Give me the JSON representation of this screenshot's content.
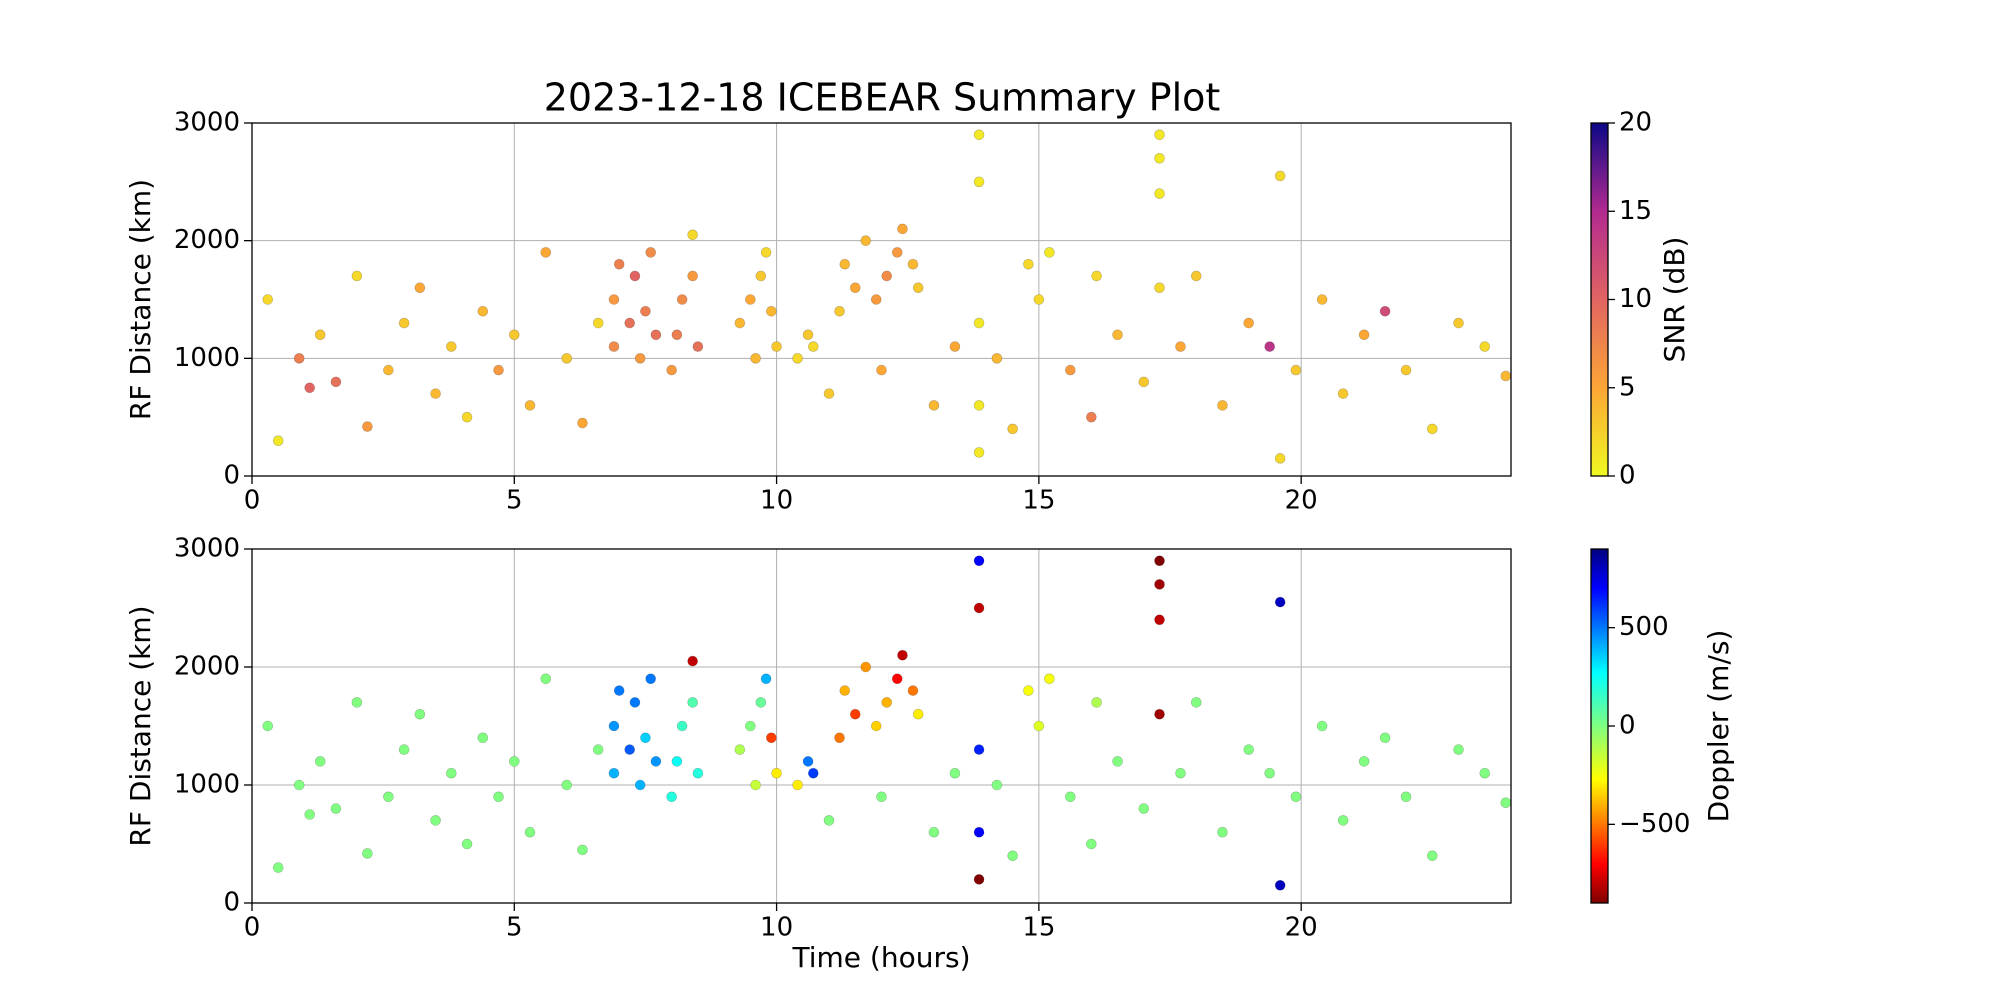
{
  "chart_data": [
    {
      "type": "scatter",
      "title": "2023-12-18 ICEBEAR Summary Plot",
      "ylabel": "RF Distance (km)",
      "xlim": [
        0,
        24
      ],
      "xticks": [
        0,
        5,
        10,
        15,
        20
      ],
      "ylim": [
        0,
        3000
      ],
      "yticks": [
        0,
        1000,
        2000,
        3000
      ],
      "grid": true,
      "colormap": "plasma_r",
      "clabel": "SNR (dB)",
      "clim": [
        0,
        20
      ],
      "cticks": [
        0,
        5,
        10,
        15,
        20
      ],
      "x": [
        0.3,
        0.5,
        0.9,
        1.1,
        1.3,
        1.6,
        2.0,
        2.2,
        2.6,
        2.9,
        3.2,
        3.5,
        3.8,
        4.1,
        4.4,
        4.7,
        5.0,
        5.3,
        5.6,
        6.0,
        6.3,
        6.6,
        6.9,
        6.9,
        7.0,
        7.2,
        7.3,
        7.4,
        7.5,
        7.6,
        7.7,
        8.0,
        8.1,
        8.2,
        8.4,
        8.5,
        8.4,
        9.3,
        9.5,
        9.6,
        9.7,
        9.8,
        9.9,
        10.0,
        10.4,
        10.6,
        10.7,
        11.2,
        11.3,
        11.5,
        11.7,
        11.9,
        12.1,
        12.3,
        12.4,
        12.6,
        12.7,
        11.0,
        12.0,
        13.0,
        13.4,
        13.86,
        13.86,
        13.86,
        13.86,
        13.86,
        14.2,
        14.5,
        14.8,
        15.0,
        15.2,
        15.6,
        16.0,
        16.1,
        16.5,
        17.0,
        17.3,
        17.3,
        17.3,
        17.3,
        17.7,
        18.0,
        18.5,
        19.0,
        19.4,
        19.6,
        19.6,
        19.9,
        20.4,
        20.8,
        21.2,
        21.6,
        22.0,
        22.5,
        23.0,
        23.5,
        23.9
      ],
      "values": [
        1500,
        300,
        1000,
        750,
        1200,
        800,
        1700,
        420,
        900,
        1300,
        1600,
        700,
        1100,
        500,
        1400,
        900,
        1200,
        600,
        1900,
        1000,
        450,
        1300,
        1100,
        1500,
        1800,
        1300,
        1700,
        1000,
        1400,
        1900,
        1200,
        900,
        1200,
        1500,
        1700,
        1100,
        2050,
        1300,
        1500,
        1000,
        1700,
        1900,
        1400,
        1100,
        1000,
        1200,
        1100,
        1400,
        1800,
        1600,
        2000,
        1500,
        1700,
        1900,
        2100,
        1800,
        1600,
        700,
        900,
        600,
        1100,
        2900,
        2500,
        1300,
        600,
        200,
        1000,
        400,
        1800,
        1500,
        1900,
        900,
        500,
        1700,
        1200,
        800,
        2900,
        2700,
        2400,
        1600,
        1100,
        1700,
        600,
        1300,
        1100,
        2550,
        150,
        900,
        1500,
        700,
        1200,
        1400,
        900,
        400,
        1300,
        1100,
        850
      ],
      "color_values": [
        2,
        1,
        8,
        10,
        3,
        9,
        2,
        6,
        4,
        3,
        5,
        4,
        3,
        2,
        4,
        6,
        3,
        4,
        5,
        3,
        5,
        2,
        7,
        6,
        8,
        9,
        10,
        6,
        8,
        7,
        9,
        6,
        8,
        7,
        6,
        9,
        2,
        4,
        5,
        4,
        3,
        2,
        4,
        3,
        2,
        3,
        2,
        3,
        4,
        5,
        4,
        6,
        7,
        6,
        5,
        4,
        3,
        3,
        5,
        4,
        5,
        1,
        1,
        1,
        1,
        1,
        4,
        3,
        2,
        2,
        1,
        6,
        8,
        2,
        4,
        3,
        1,
        1,
        1,
        2,
        5,
        3,
        4,
        5,
        14,
        2,
        2,
        3,
        4,
        3,
        5,
        12,
        3,
        2,
        3,
        2,
        4
      ]
    },
    {
      "type": "scatter",
      "ylabel": "RF Distance (km)",
      "xlabel": "Time (hours)",
      "xlim": [
        0,
        24
      ],
      "xticks": [
        0,
        5,
        10,
        15,
        20
      ],
      "ylim": [
        0,
        3000
      ],
      "yticks": [
        0,
        1000,
        2000,
        3000
      ],
      "grid": true,
      "colormap": "jet_r",
      "clabel": "Doppler (m/s)",
      "clim": [
        -900,
        900
      ],
      "cticks": [
        {
          "value": -500,
          "label": "−500"
        },
        0,
        500
      ],
      "x": [
        0.3,
        0.5,
        0.9,
        1.1,
        1.3,
        1.6,
        2.0,
        2.2,
        2.6,
        2.9,
        3.2,
        3.5,
        3.8,
        4.1,
        4.4,
        4.7,
        5.0,
        5.3,
        5.6,
        6.0,
        6.3,
        6.6,
        6.9,
        6.9,
        7.0,
        7.2,
        7.3,
        7.4,
        7.5,
        7.6,
        7.7,
        8.0,
        8.1,
        8.2,
        8.4,
        8.5,
        8.4,
        9.3,
        9.5,
        9.6,
        9.7,
        9.8,
        9.9,
        10.0,
        10.4,
        10.6,
        10.7,
        11.2,
        11.3,
        11.5,
        11.7,
        11.9,
        12.1,
        12.3,
        12.4,
        12.6,
        12.7,
        11.0,
        12.0,
        13.0,
        13.4,
        13.86,
        13.86,
        13.86,
        13.86,
        13.86,
        14.2,
        14.5,
        14.8,
        15.0,
        15.2,
        15.6,
        16.0,
        16.1,
        16.5,
        17.0,
        17.3,
        17.3,
        17.3,
        17.3,
        17.7,
        18.0,
        18.5,
        19.0,
        19.4,
        19.6,
        19.6,
        19.9,
        20.4,
        20.8,
        21.2,
        21.6,
        22.0,
        22.5,
        23.0,
        23.5,
        23.9
      ],
      "values": [
        1500,
        300,
        1000,
        750,
        1200,
        800,
        1700,
        420,
        900,
        1300,
        1600,
        700,
        1100,
        500,
        1400,
        900,
        1200,
        600,
        1900,
        1000,
        450,
        1300,
        1100,
        1500,
        1800,
        1300,
        1700,
        1000,
        1400,
        1900,
        1200,
        900,
        1200,
        1500,
        1700,
        1100,
        2050,
        1300,
        1500,
        1000,
        1700,
        1900,
        1400,
        1100,
        1000,
        1200,
        1100,
        1400,
        1800,
        1600,
        2000,
        1500,
        1700,
        1900,
        2100,
        1800,
        1600,
        700,
        900,
        600,
        1100,
        2900,
        2500,
        1300,
        600,
        200,
        1000,
        400,
        1800,
        1500,
        1900,
        900,
        500,
        1700,
        1200,
        800,
        2900,
        2700,
        2400,
        1600,
        1100,
        1700,
        600,
        1300,
        1100,
        2550,
        150,
        900,
        1500,
        700,
        1200,
        1400,
        900,
        400,
        1300,
        1100,
        850
      ],
      "color_values": [
        0,
        0,
        0,
        0,
        0,
        0,
        0,
        0,
        0,
        0,
        0,
        0,
        0,
        0,
        0,
        0,
        0,
        0,
        0,
        0,
        0,
        0,
        400,
        450,
        500,
        550,
        500,
        400,
        350,
        500,
        450,
        200,
        250,
        150,
        100,
        200,
        -800,
        -100,
        0,
        -150,
        50,
        400,
        -600,
        -300,
        -300,
        500,
        600,
        -500,
        -400,
        -600,
        -450,
        -350,
        -400,
        -700,
        -800,
        -500,
        -300,
        0,
        0,
        0,
        0,
        700,
        -800,
        650,
        700,
        -900,
        0,
        0,
        -250,
        -200,
        -250,
        0,
        0,
        -100,
        0,
        0,
        -900,
        -850,
        -800,
        -850,
        0,
        0,
        0,
        0,
        0,
        800,
        800,
        0,
        0,
        0,
        0,
        0,
        0,
        0,
        0,
        0,
        0
      ]
    }
  ]
}
